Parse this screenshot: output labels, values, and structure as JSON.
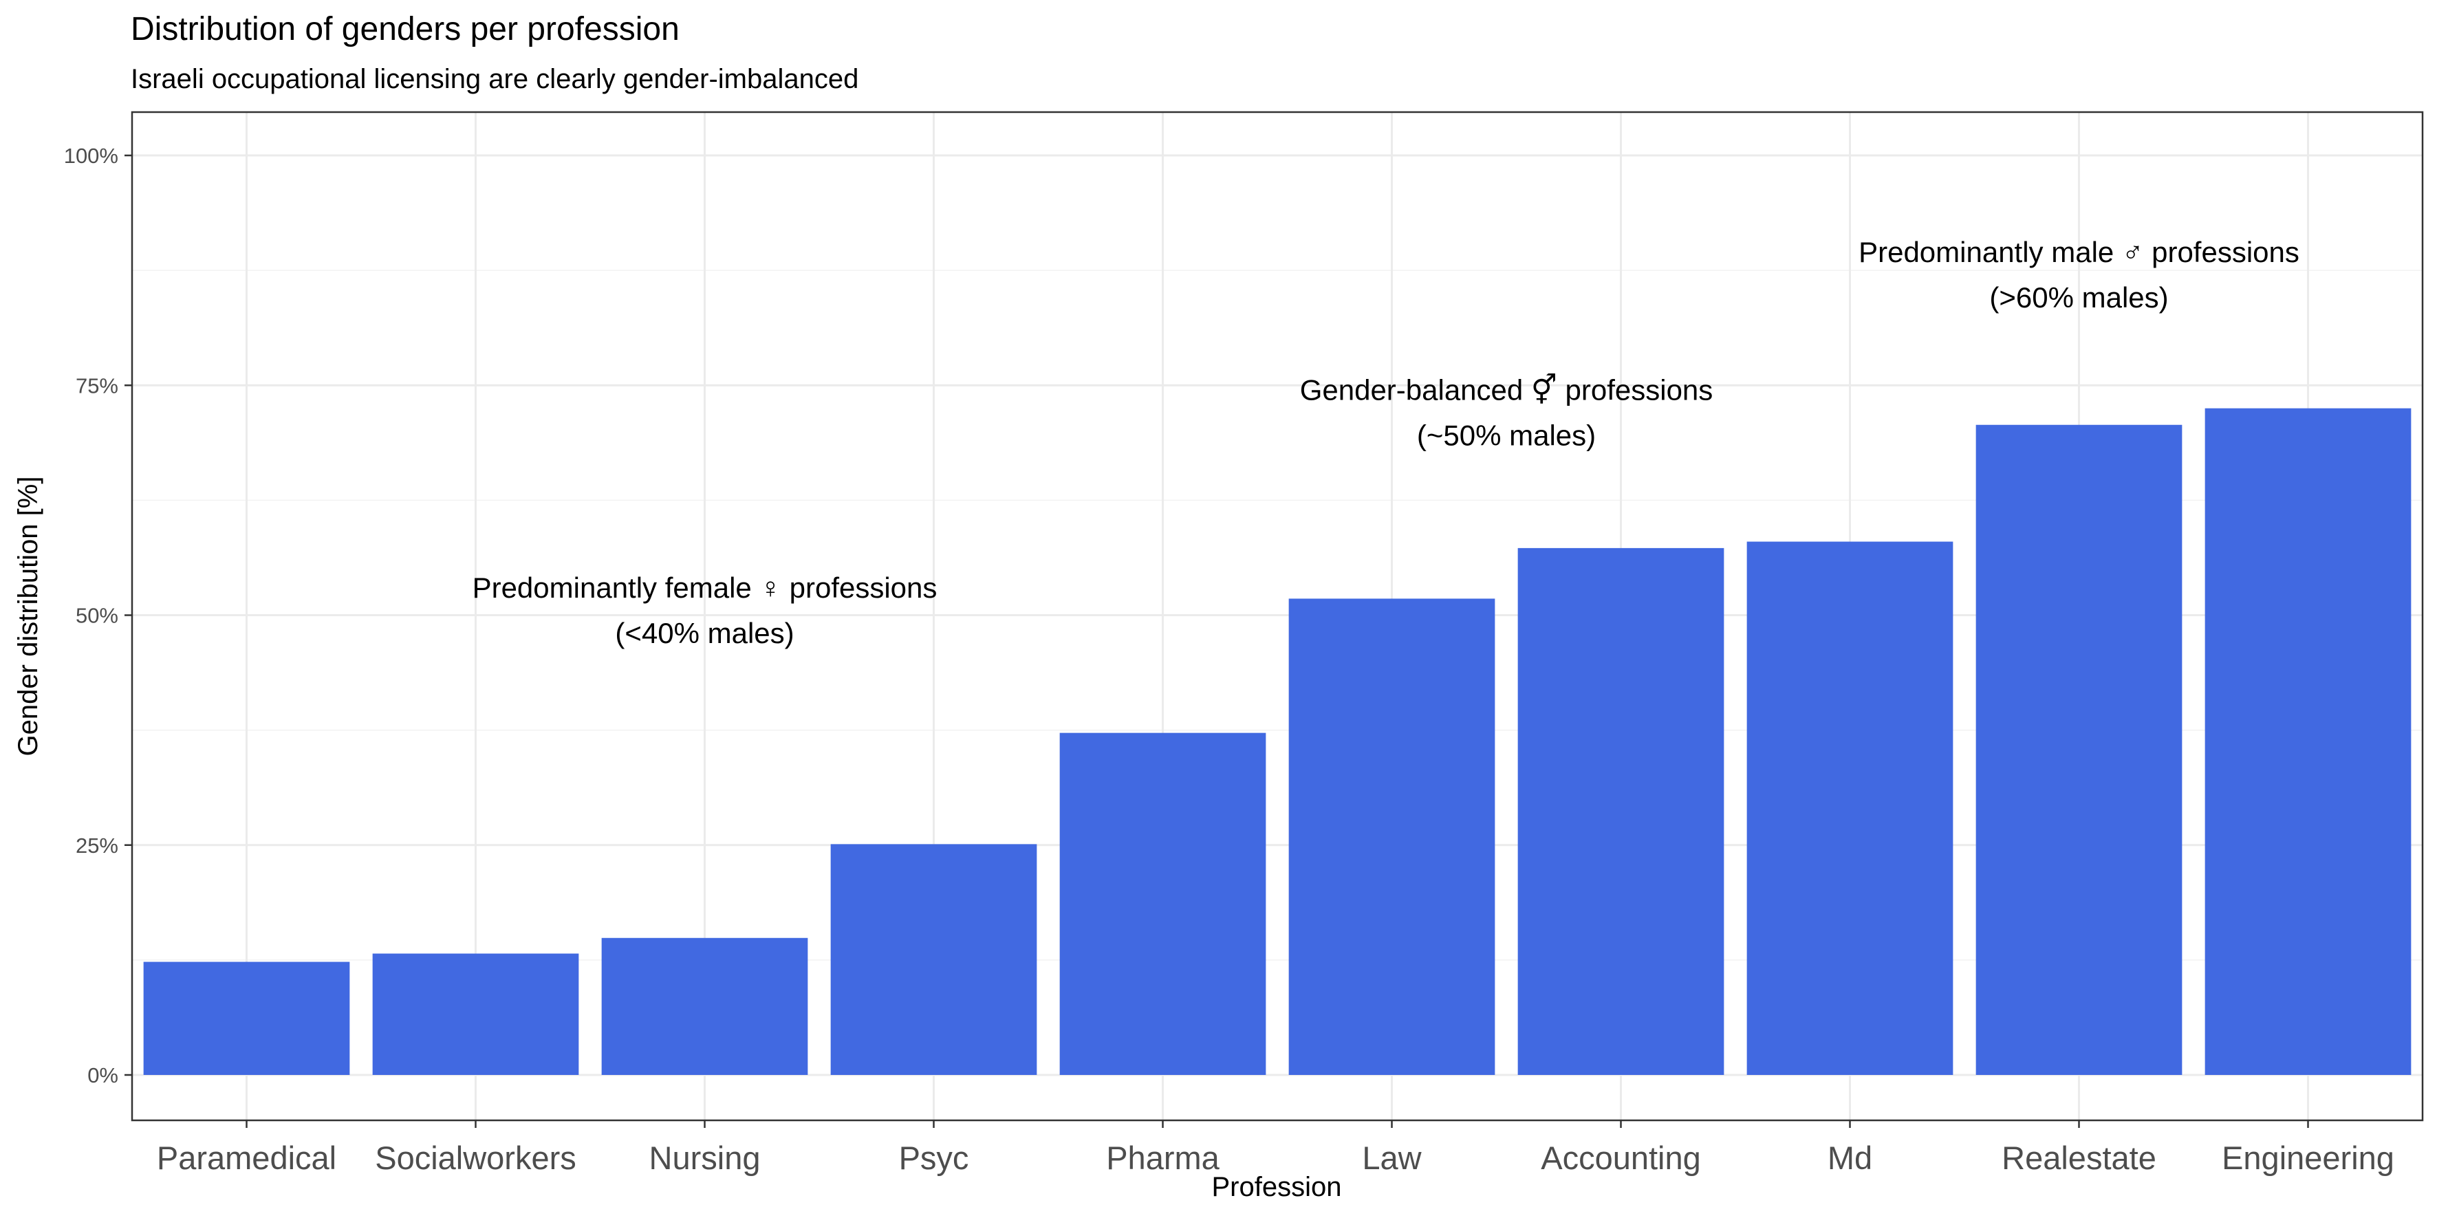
{
  "chart_data": {
    "type": "bar",
    "title": "Distribution of genders per profession",
    "subtitle": "Israeli occupational licensing are clearly gender-imbalanced",
    "xlabel": "Profession",
    "ylabel": "Gender distribution [%]",
    "categories": [
      "Paramedical",
      "Socialworkers",
      "Nursing",
      "Psyc",
      "Pharma",
      "Law",
      "Accounting",
      "Md",
      "Realestate",
      "Engineering"
    ],
    "values": [
      12.3,
      13.2,
      14.9,
      25.1,
      37.2,
      51.8,
      57.3,
      58.0,
      70.7,
      72.5
    ],
    "ylim": [
      0,
      100
    ],
    "yticks": [
      0,
      25,
      50,
      75,
      100
    ],
    "ytick_labels": [
      "0%",
      "25%",
      "50%",
      "75%",
      "100%"
    ],
    "bar_color": "#4169E1",
    "grid": true,
    "annotations": [
      {
        "lines": [
          "Predominantly female ♀ professions",
          "(<40% males)"
        ],
        "x_category": "Nursing",
        "y": 50.5
      },
      {
        "lines": [
          "Gender-balanced ⚥ professions",
          "(~50% males)"
        ],
        "x_between": [
          "Law",
          "Accounting"
        ],
        "y": 72
      },
      {
        "lines": [
          "Predominantly male ♂ professions",
          "(>60% males)"
        ],
        "x_category": "Realestate",
        "y": 87
      }
    ]
  }
}
